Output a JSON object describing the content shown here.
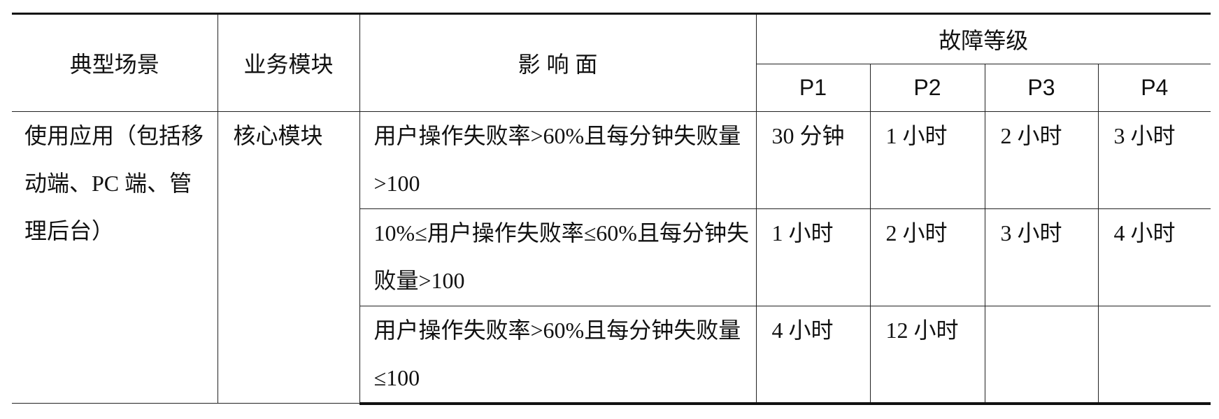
{
  "header": {
    "scenario": "典型场景",
    "module": "业务模块",
    "impact": "影 响 面",
    "level_group": "故障等级",
    "levels": [
      "P1",
      "P2",
      "P3",
      "P4"
    ]
  },
  "rows": [
    {
      "scenario": "使用应用（包括移动端、PC 端、管理后台）",
      "module": "核心模块",
      "impact": "用户操作失败率>60%且每分钟失败量>100",
      "values": [
        "30 分钟",
        "1 小时",
        "2 小时",
        "3 小时"
      ]
    },
    {
      "impact": "10%≤用户操作失败率≤60%且每分钟失败量>100",
      "values": [
        "1 小时",
        "2 小时",
        "3 小时",
        "4 小时"
      ]
    },
    {
      "impact": "用户操作失败率>60%且每分钟失败量≤100",
      "values": [
        "4 小时",
        "12 小时",
        "",
        ""
      ]
    }
  ]
}
